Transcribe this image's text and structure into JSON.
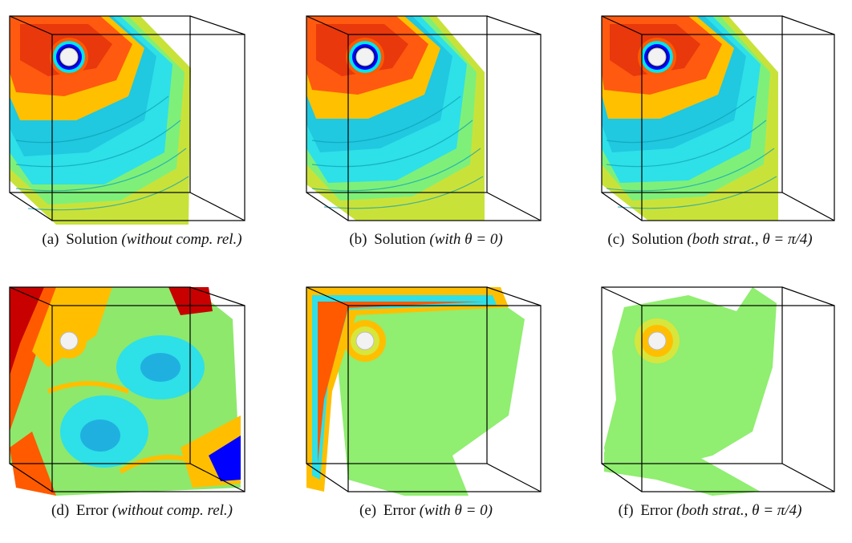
{
  "figure": {
    "panels": [
      {
        "tag": "(a)",
        "label": "Solution",
        "detail": "(without comp. rel.)",
        "kind": "solution",
        "variant": "a"
      },
      {
        "tag": "(b)",
        "label": "Solution",
        "detail": "(with θ = 0)",
        "kind": "solution",
        "variant": "b"
      },
      {
        "tag": "(c)",
        "label": "Solution",
        "detail": "(both strat., θ = π/4)",
        "kind": "solution",
        "variant": "c"
      },
      {
        "tag": "(d)",
        "label": "Error",
        "detail": "(without comp. rel.)",
        "kind": "error",
        "variant": "d"
      },
      {
        "tag": "(e)",
        "label": "Error",
        "detail": "(with θ = 0)",
        "kind": "error",
        "variant": "e"
      },
      {
        "tag": "(f)",
        "label": "Error",
        "detail": "(both strat., θ = π/4)",
        "kind": "error",
        "variant": "f"
      }
    ],
    "colors": {
      "colormap": [
        "#00008b",
        "#0000ff",
        "#00e5ee",
        "#7fff7f",
        "#d7e63c",
        "#ffbf00",
        "#ff5a00",
        "#c80000"
      ],
      "error_surface": "#90ee70",
      "sphere": "#f2f2f2",
      "frame": "#000000"
    }
  }
}
